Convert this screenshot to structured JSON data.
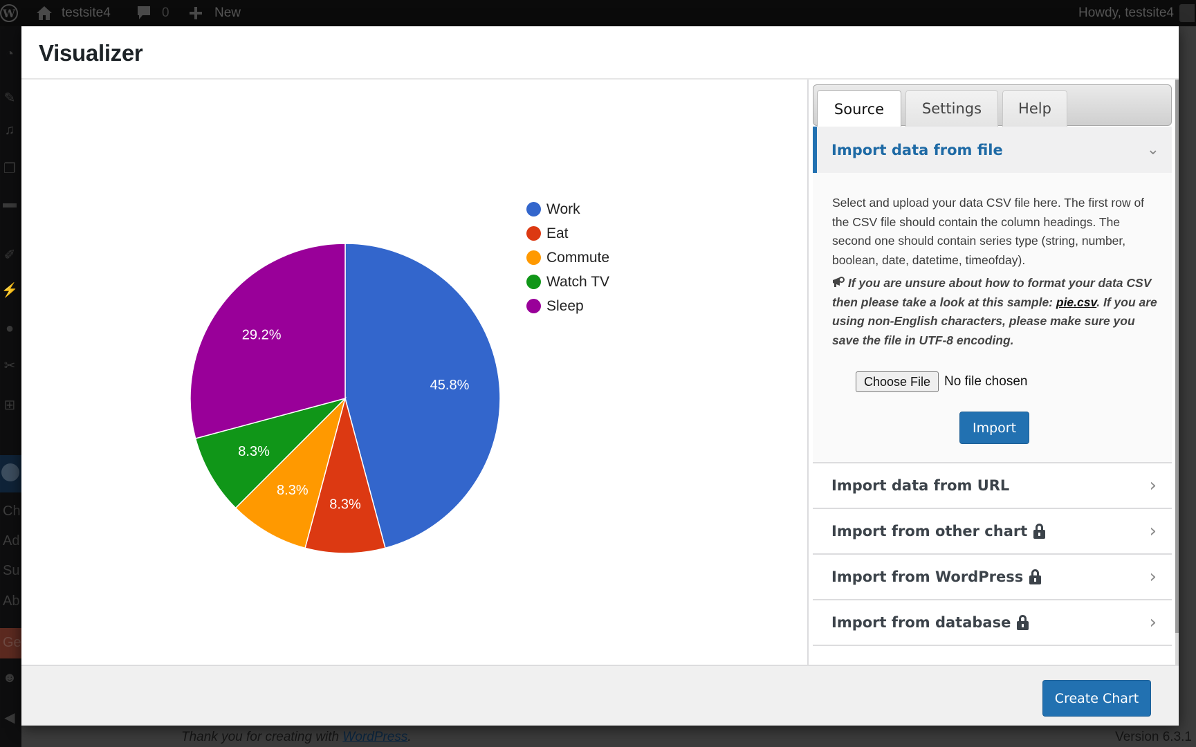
{
  "admin_bar": {
    "site_name": "testsite4",
    "comments_count": "0",
    "new_label": "New",
    "greeting": "Howdy, testsite4"
  },
  "sidebar": {
    "submenu_fragments": [
      "Ch",
      "Ad",
      "Su",
      "Ab",
      "Ge"
    ]
  },
  "footer": {
    "thanks_prefix": "Thank you for creating with ",
    "thanks_link": "WordPress",
    "thanks_suffix": ".",
    "version": "Version 6.3.1"
  },
  "modal": {
    "title": "Visualizer",
    "tabs": [
      {
        "label": "Source",
        "active": true
      },
      {
        "label": "Settings",
        "active": false
      },
      {
        "label": "Help",
        "active": false
      }
    ],
    "source": {
      "open_section": {
        "title": "Import data from file",
        "description": "Select and upload your data CSV file here. The first row of the CSV file should contain the column headings. The second one should contain series type (string, number, boolean, date, datetime, timeofday).",
        "note_prefix": " If you are unsure about how to format your data CSV then please take a look at this sample: ",
        "note_link": "pie.csv",
        "note_suffix": ". If you are using non-English characters, please make sure you save the file in UTF-8 encoding.",
        "choose_file_label": "Choose File",
        "no_file_label": "No file chosen",
        "import_label": "Import"
      },
      "sections": [
        {
          "title": "Import data from URL",
          "locked": false
        },
        {
          "title": "Import from other chart",
          "locked": true
        },
        {
          "title": "Import from WordPress",
          "locked": true
        },
        {
          "title": "Import from database",
          "locked": true
        }
      ]
    },
    "create_chart_label": "Create Chart"
  },
  "chart_data": {
    "type": "pie",
    "title": "",
    "categories": [
      "Work",
      "Eat",
      "Commute",
      "Watch TV",
      "Sleep"
    ],
    "values": [
      11,
      2,
      2,
      2,
      7
    ],
    "percent_labels": [
      "45.8%",
      "8.3%",
      "8.3%",
      "8.3%",
      "29.2%"
    ],
    "colors": [
      "#3366cc",
      "#dc3912",
      "#ff9900",
      "#109618",
      "#990099"
    ],
    "legend_position": "right"
  }
}
